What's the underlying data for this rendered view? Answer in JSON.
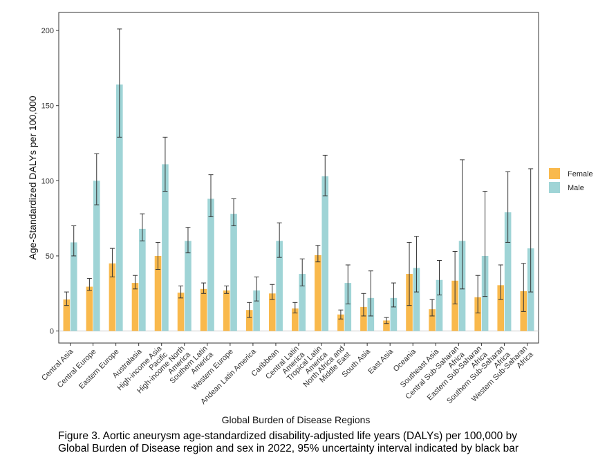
{
  "chart_data": {
    "type": "bar",
    "xlabel": "Global Burden of Disease Regions",
    "ylabel": "Age-Standardized DALYs per 100,000",
    "ylim": [
      -8,
      212
    ],
    "yticks": [
      0,
      50,
      100,
      150,
      200
    ],
    "grid": false,
    "legend_position": "right",
    "categories": [
      [
        "Central Asia"
      ],
      [
        "Central Europe"
      ],
      [
        "Eastern Europe"
      ],
      [
        "Australasia"
      ],
      [
        "High-income Asia",
        "Pacific"
      ],
      [
        "High-income North",
        "America"
      ],
      [
        "Southern Latin",
        "America"
      ],
      [
        "Western Europe"
      ],
      [
        "Andean Latin America"
      ],
      [
        "Caribbean"
      ],
      [
        "Central Latin",
        "America"
      ],
      [
        "Tropical Latin",
        "America"
      ],
      [
        "North Africa and",
        "Middle East"
      ],
      [
        "South Asia"
      ],
      [
        "East Asia"
      ],
      [
        "Oceania"
      ],
      [
        "Southeast Asia"
      ],
      [
        "Central Sub-Saharan",
        "Africa"
      ],
      [
        "Eastern Sub-Saharan",
        "Africa"
      ],
      [
        "Southern Sub-Saharan",
        "Africa"
      ],
      [
        "Western Sub-Saharan",
        "Africa"
      ]
    ],
    "series": [
      {
        "name": "Female",
        "color": "#f9b94c",
        "values": [
          21,
          29.5,
          45,
          32,
          50,
          25.5,
          28,
          27,
          14,
          25,
          15,
          50.5,
          11,
          16,
          7,
          38,
          14.5,
          33.5,
          22.5,
          30.5,
          26.5
        ],
        "lower": [
          17,
          27,
          36,
          28,
          41,
          22,
          25,
          25,
          9,
          21,
          12,
          46,
          8,
          10,
          5,
          17,
          10,
          18,
          12,
          21,
          13
        ],
        "upper": [
          26,
          35,
          55,
          37,
          59,
          30,
          32,
          30,
          19,
          31,
          19,
          57,
          14,
          25,
          9,
          59,
          21,
          53,
          37,
          44,
          45
        ]
      },
      {
        "name": "Male",
        "color": "#9fd4d6",
        "values": [
          59,
          100,
          164,
          68,
          111,
          60,
          88,
          78,
          27,
          60,
          38,
          103,
          32,
          22,
          22,
          42,
          34,
          60,
          50,
          79,
          55
        ],
        "lower": [
          50,
          84,
          129,
          60,
          93,
          52,
          76,
          70,
          20,
          49,
          30,
          90,
          18,
          10,
          16,
          26,
          24,
          28,
          23,
          59,
          26
        ],
        "upper": [
          70,
          118,
          201,
          78,
          129,
          69,
          104,
          88,
          36,
          72,
          48,
          117,
          44,
          40,
          32,
          63,
          47,
          114,
          93,
          106,
          108
        ]
      }
    ],
    "caption": [
      "Figure 3. Aortic aneurysm age-standardized disability-adjusted life years (DALYs) per 100,000 by",
      "Global Burden of Disease region and sex in 2022, 95% uncertainty interval indicated by black bar"
    ]
  }
}
